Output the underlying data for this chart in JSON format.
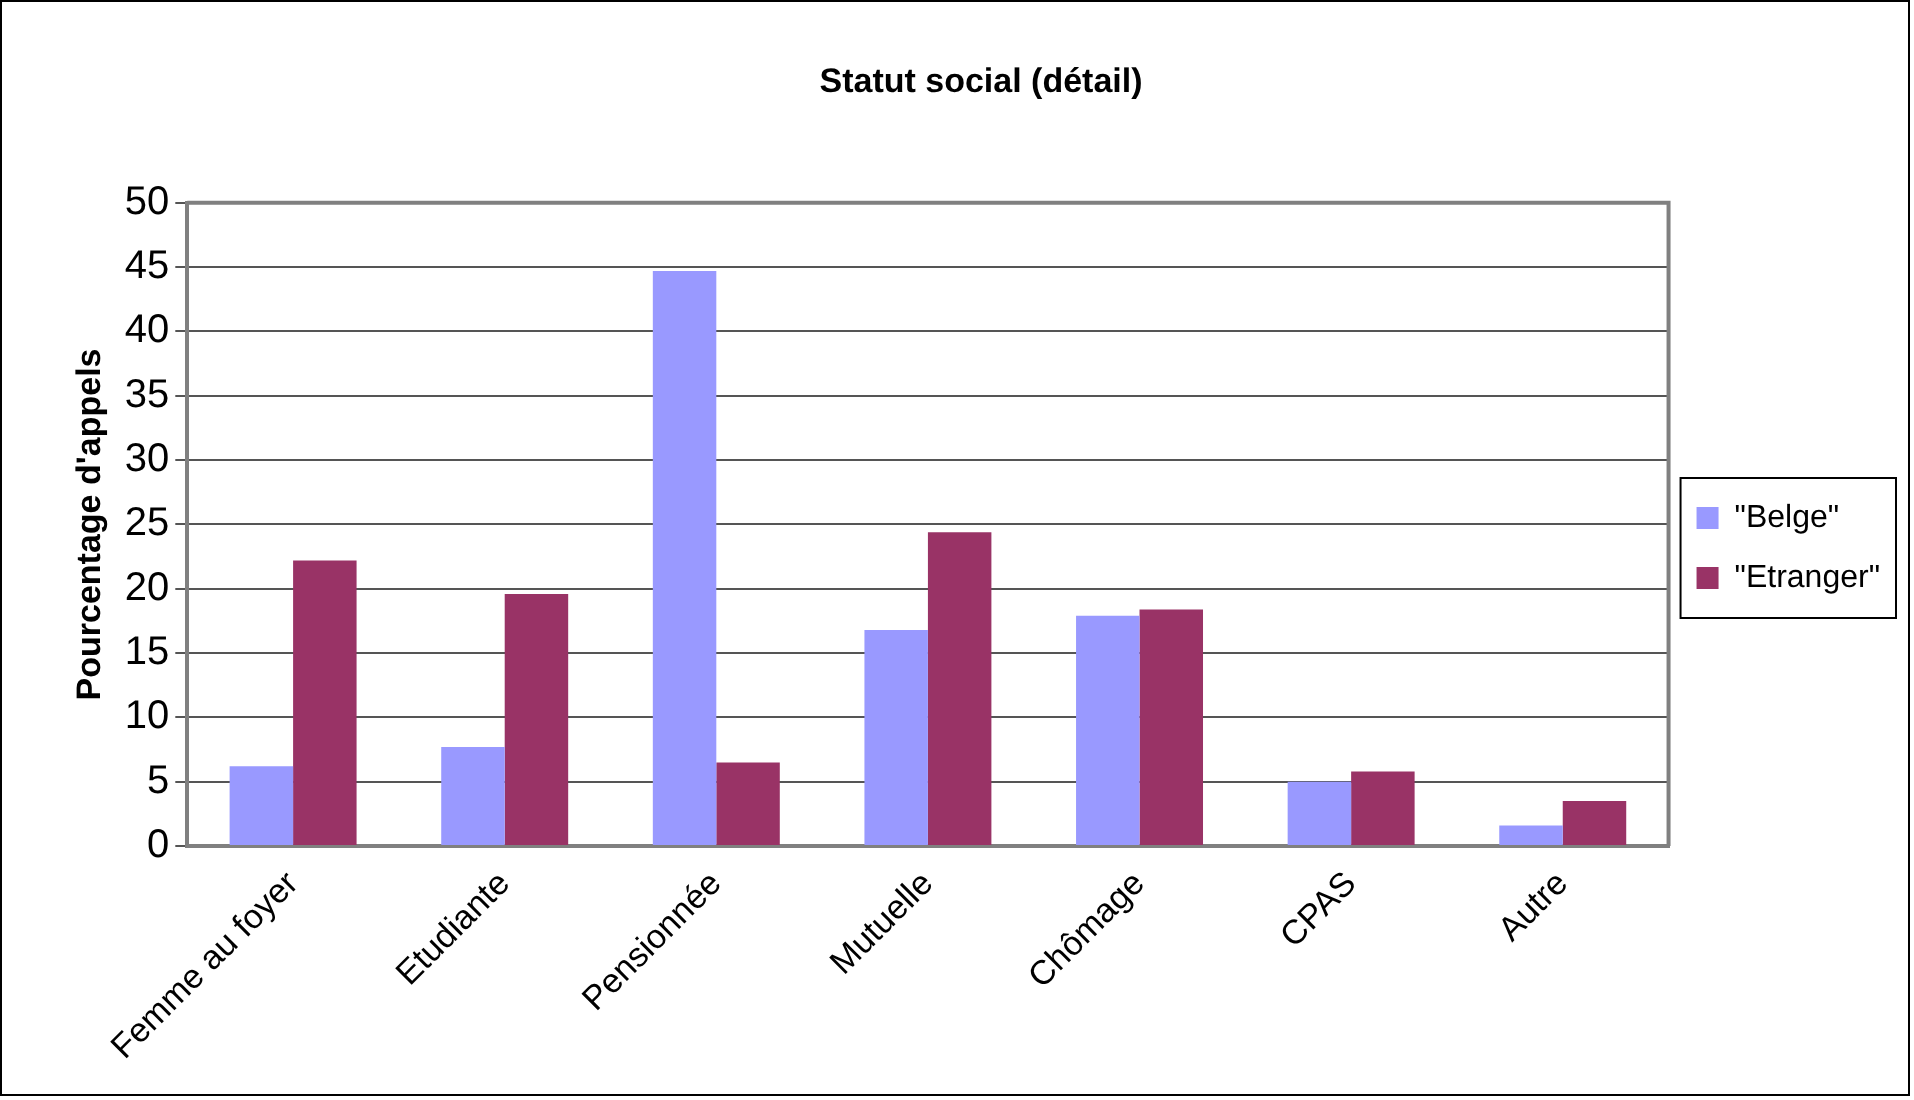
{
  "chart_data": {
    "type": "bar",
    "title": "Statut social (détail)",
    "ylabel": "Pourcentage d'appels",
    "categories": [
      "Femme au foyer",
      "Etudiante",
      "Pensionnée",
      "Mutuelle",
      "Chômage",
      "CPAS",
      "Autre"
    ],
    "series": [
      {
        "name": "\"Belge\"",
        "color": "#9999ff",
        "values": [
          6.2,
          7.7,
          44.7,
          16.8,
          17.9,
          5,
          1.6
        ]
      },
      {
        "name": "\"Etranger\"",
        "color": "#993366",
        "values": [
          22.2,
          19.6,
          6.5,
          24.4,
          18.4,
          5.8,
          3.5
        ]
      }
    ],
    "ylim": [
      0,
      50
    ],
    "yticks": [
      0,
      5,
      10,
      15,
      20,
      25,
      30,
      35,
      40,
      45,
      50
    ],
    "grid": "y",
    "legend": "right"
  }
}
